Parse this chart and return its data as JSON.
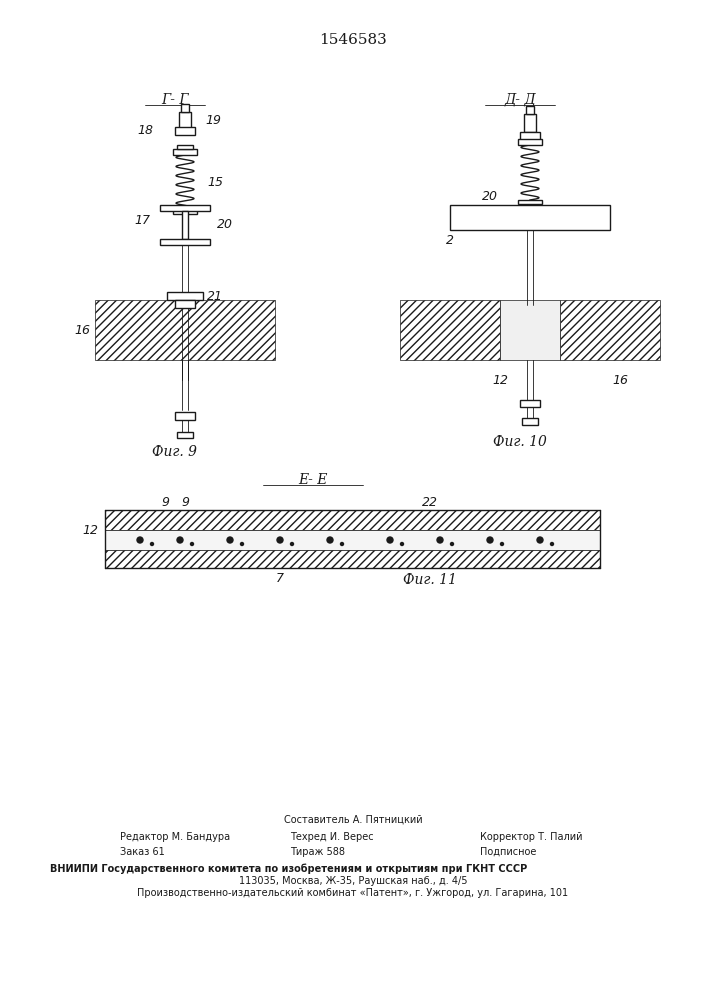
{
  "title": "1546583",
  "fig9_label": "Г- Г",
  "fig10_label": "Д- Д",
  "fig11_label": "Е- Е",
  "fig9_caption": "Фиг. 9",
  "fig10_caption": "Фиг. 10",
  "fig11_caption": "Фиг. 11",
  "footer_line1": "Составитель А. Пятницкий",
  "footer_line2_left": "Редактор М. Бандура",
  "footer_line2_mid": "Техред И. Верес",
  "footer_line2_right": "Корректор Т. Палий",
  "footer_line3_left": "Заказ 61",
  "footer_line3_mid": "Тираж 588",
  "footer_line3_right": "Подписное",
  "footer_line4": "ВНИИПИ Государственного комитета по изобретениям и открытиям при ГКНТ СССР",
  "footer_line5": "113035, Москва, Ж-35, Раушская наб., д. 4/5",
  "footer_line6": "Производственно-издательский комбинат «Патент», г. Ужгород, ул. Гагарина, 101",
  "bg_color": "#ffffff",
  "line_color": "#1a1a1a",
  "hatch_color": "#333333"
}
